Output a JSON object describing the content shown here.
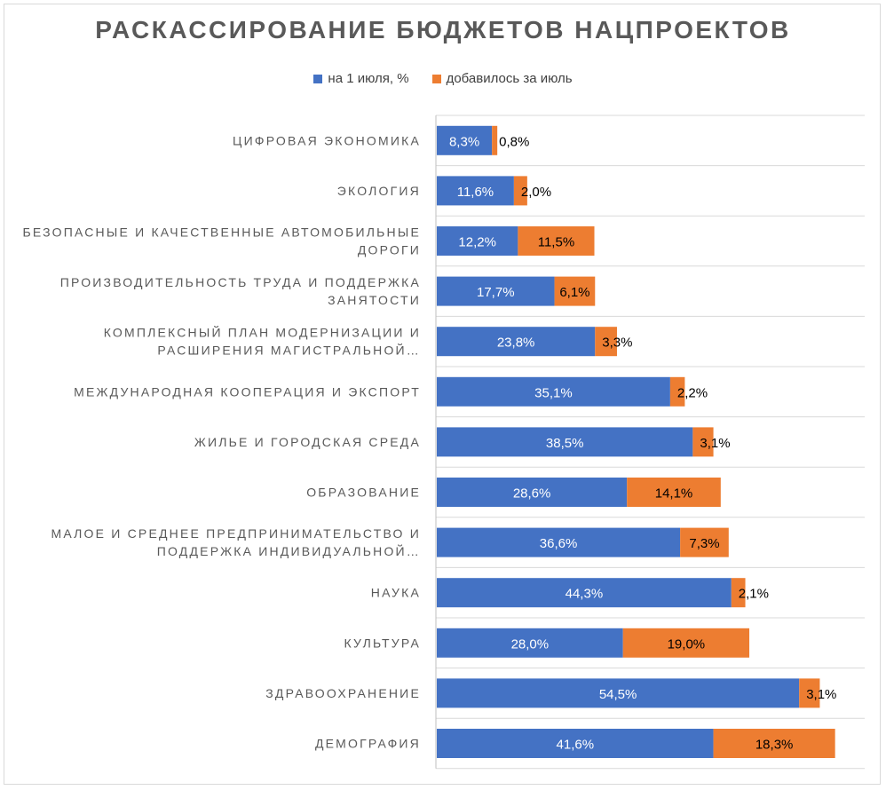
{
  "colors": {
    "series1": "#4472C4",
    "series2": "#ED7D31",
    "grid": "#d9d9d9",
    "axis": "#bfbfbf"
  },
  "chart_data": {
    "type": "bar",
    "orientation": "horizontal",
    "stacked": true,
    "title": "РАСКАССИРОВАНИЕ  БЮДЖЕТОВ  НАЦПРОЕКТОВ",
    "legend_position": "top",
    "grid": true,
    "xlim": [
      0,
      80
    ],
    "categories": [
      [
        "ЦИФРОВАЯ ЭКОНОМИКА"
      ],
      [
        "ЭКОЛОГИЯ"
      ],
      [
        "БЕЗОПАСНЫЕ И КАЧЕСТВЕННЫЕ АВТОМОБИЛЬНЫЕ",
        "ДОРОГИ"
      ],
      [
        "ПРОИЗВОДИТЕЛЬНОСТЬ ТРУДА И ПОДДЕРЖКА",
        "ЗАНЯТОСТИ"
      ],
      [
        "КОМПЛЕКСНЫЙ ПЛАН МОДЕРНИЗАЦИИ И",
        "РАСШИРЕНИЯ МАГИСТРАЛЬНОЙ…"
      ],
      [
        "МЕЖДУНАРОДНАЯ КООПЕРАЦИЯ И ЭКСПОРТ"
      ],
      [
        "ЖИЛЬЕ И ГОРОДСКАЯ СРЕДА"
      ],
      [
        "ОБРАЗОВАНИЕ"
      ],
      [
        "МАЛОЕ И СРЕДНЕЕ ПРЕДПРИНИМАТЕЛЬСТВО И",
        "ПОДДЕРЖКА ИНДИВИДУАЛЬНОЙ…"
      ],
      [
        "НАУКА"
      ],
      [
        "КУЛЬТУРА"
      ],
      [
        "ЗДРАВООХРАНЕНИЕ"
      ],
      [
        "ДЕМОГРАФИЯ"
      ]
    ],
    "series": [
      {
        "name": "на 1 июля, %",
        "values": [
          8.3,
          11.6,
          12.2,
          17.7,
          23.8,
          35.1,
          38.5,
          28.6,
          36.6,
          44.3,
          28.0,
          54.5,
          41.6
        ],
        "labels": [
          "8,3%",
          "11,6%",
          "12,2%",
          "17,7%",
          "23,8%",
          "35,1%",
          "38,5%",
          "28,6%",
          "36,6%",
          "44,3%",
          "28,0%",
          "54,5%",
          "41,6%"
        ]
      },
      {
        "name": "добавилось за июль",
        "values": [
          0.8,
          2.0,
          11.5,
          6.1,
          3.3,
          2.2,
          3.1,
          14.1,
          7.3,
          2.1,
          19.0,
          3.1,
          18.3
        ],
        "labels": [
          "0,8%",
          "2,0%",
          "11,5%",
          "6,1%",
          "3,3%",
          "2,2%",
          "3,1%",
          "14,1%",
          "7,3%",
          "2,1%",
          "19,0%",
          "3,1%",
          "18,3%"
        ]
      }
    ]
  }
}
